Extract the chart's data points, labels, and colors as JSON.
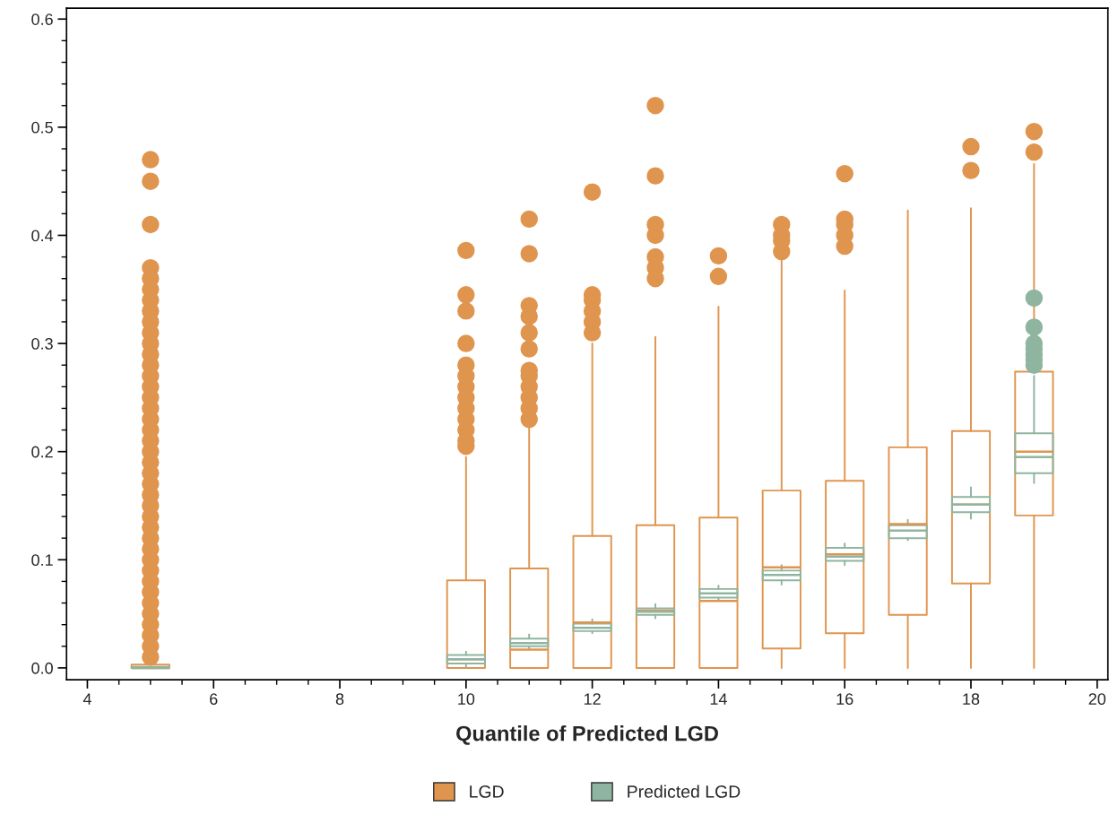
{
  "chart_data": {
    "type": "box",
    "xlabel": "Quantile of Predicted LGD",
    "xlim": [
      3.67,
      20.17
    ],
    "ylim": [
      -0.011,
      0.61
    ],
    "xticks": [
      4,
      {
        "value": 4.5,
        "label": null
      },
      {
        "value": 5,
        "label": null
      },
      {
        "value": 5.5,
        "label": null
      },
      6,
      {
        "value": 6.5,
        "label": null
      },
      {
        "value": 7,
        "label": null
      },
      {
        "value": 7.5,
        "label": null
      },
      8,
      {
        "value": 8.5,
        "label": null
      },
      {
        "value": 9,
        "label": null
      },
      {
        "value": 9.5,
        "label": null
      },
      10,
      {
        "value": 10.5,
        "label": null
      },
      {
        "value": 11,
        "label": null
      },
      {
        "value": 11.5,
        "label": null
      },
      12,
      {
        "value": 12.5,
        "label": null
      },
      {
        "value": 13,
        "label": null
      },
      {
        "value": 13.5,
        "label": null
      },
      14,
      {
        "value": 14.5,
        "label": null
      },
      {
        "value": 15,
        "label": null
      },
      {
        "value": 15.5,
        "label": null
      },
      16,
      {
        "value": 16.5,
        "label": null
      },
      {
        "value": 17,
        "label": null
      },
      {
        "value": 17.5,
        "label": null
      },
      18,
      {
        "value": 18.5,
        "label": null
      },
      {
        "value": 19,
        "label": null
      },
      {
        "value": 19.5,
        "label": null
      },
      20
    ],
    "yticks": [
      {
        "value": 0,
        "label": "0.0"
      },
      {
        "value": 0.02,
        "label": null
      },
      {
        "value": 0.04,
        "label": null
      },
      {
        "value": 0.06,
        "label": null
      },
      {
        "value": 0.08,
        "label": null
      },
      0.1,
      {
        "value": 0.12,
        "label": null
      },
      {
        "value": 0.14,
        "label": null
      },
      {
        "value": 0.16,
        "label": null
      },
      {
        "value": 0.18,
        "label": null
      },
      0.2,
      {
        "value": 0.22,
        "label": null
      },
      {
        "value": 0.24,
        "label": null
      },
      {
        "value": 0.26,
        "label": null
      },
      {
        "value": 0.28,
        "label": null
      },
      0.3,
      {
        "value": 0.32,
        "label": null
      },
      {
        "value": 0.34,
        "label": null
      },
      {
        "value": 0.36,
        "label": null
      },
      {
        "value": 0.38,
        "label": null
      },
      0.4,
      {
        "value": 0.42,
        "label": null
      },
      {
        "value": 0.44,
        "label": null
      },
      {
        "value": 0.46,
        "label": null
      },
      {
        "value": 0.48,
        "label": null
      },
      0.5,
      {
        "value": 0.52,
        "label": null
      },
      {
        "value": 0.54,
        "label": null
      },
      {
        "value": 0.56,
        "label": null
      },
      {
        "value": 0.58,
        "label": null
      },
      0.6
    ],
    "grid": false,
    "legend": "bottom",
    "marker": "circle",
    "series": [
      {
        "name": "LGD",
        "color": "#e0954f",
        "x": [
          5,
          10,
          11,
          12,
          13,
          14,
          15,
          16,
          17,
          18,
          19
        ],
        "boxes": [
          {
            "low": 0,
            "q1": 0,
            "median": 0,
            "q3": 0.003,
            "high": 0.003,
            "outliers": [
              0.01,
              0.02,
              0.03,
              0.04,
              0.05,
              0.06,
              0.07,
              0.08,
              0.09,
              0.1,
              0.11,
              0.12,
              0.13,
              0.14,
              0.15,
              0.16,
              0.17,
              0.18,
              0.19,
              0.2,
              0.21,
              0.22,
              0.23,
              0.24,
              0.25,
              0.26,
              0.27,
              0.28,
              0.29,
              0.3,
              0.31,
              0.32,
              0.33,
              0.34,
              0.35,
              0.36,
              0.37,
              0.41,
              0.45,
              0.47
            ]
          },
          {
            "low": 0,
            "q1": 0,
            "median": 0.008,
            "q3": 0.081,
            "high": 0.195,
            "outliers": [
              0.205,
              0.21,
              0.22,
              0.23,
              0.24,
              0.25,
              0.26,
              0.27,
              0.28,
              0.3,
              0.33,
              0.345,
              0.386
            ]
          },
          {
            "low": 0,
            "q1": 0,
            "median": 0.017,
            "q3": 0.092,
            "high": 0.224,
            "outliers": [
              0.23,
              0.24,
              0.25,
              0.26,
              0.27,
              0.275,
              0.295,
              0.31,
              0.325,
              0.335,
              0.383,
              0.415
            ]
          },
          {
            "low": 0,
            "q1": 0,
            "median": 0.042,
            "q3": 0.122,
            "high": 0.3,
            "outliers": [
              0.31,
              0.32,
              0.33,
              0.34,
              0.345,
              0.44
            ]
          },
          {
            "low": 0,
            "q1": 0,
            "median": 0.053,
            "q3": 0.132,
            "high": 0.306,
            "outliers": [
              0.36,
              0.37,
              0.38,
              0.4,
              0.41,
              0.455,
              0.52
            ]
          },
          {
            "low": 0,
            "q1": 0,
            "median": 0.062,
            "q3": 0.139,
            "high": 0.334,
            "outliers": [
              0.362,
              0.381
            ]
          },
          {
            "low": 0,
            "q1": 0.018,
            "median": 0.093,
            "q3": 0.164,
            "high": 0.38,
            "outliers": [
              0.385,
              0.395,
              0.4,
              0.41
            ]
          },
          {
            "low": 0,
            "q1": 0.032,
            "median": 0.105,
            "q3": 0.173,
            "high": 0.349,
            "outliers": [
              0.39,
              0.4,
              0.41,
              0.415,
              0.457
            ]
          },
          {
            "low": 0,
            "q1": 0.049,
            "median": 0.133,
            "q3": 0.204,
            "high": 0.423
          },
          {
            "low": 0,
            "q1": 0.078,
            "median": 0.151,
            "q3": 0.219,
            "high": 0.425,
            "outliers": [
              0.46,
              0.482
            ]
          },
          {
            "low": 0,
            "q1": 0.141,
            "median": 0.2,
            "q3": 0.274,
            "high": 0.466,
            "outliers": [
              0.477,
              0.496
            ]
          }
        ]
      },
      {
        "name": "Predicted LGD",
        "color": "#8fb5a0",
        "x": [
          5,
          10,
          11,
          12,
          13,
          14,
          15,
          16,
          17,
          18,
          19
        ],
        "boxes": [
          {
            "low": 0,
            "q1": 0,
            "median": 0,
            "q3": 0.001,
            "high": 0.001
          },
          {
            "low": 0.001,
            "q1": 0.004,
            "median": 0.008,
            "q3": 0.012,
            "high": 0.015
          },
          {
            "low": 0.017,
            "q1": 0.02,
            "median": 0.023,
            "q3": 0.027,
            "high": 0.031
          },
          {
            "low": 0.032,
            "q1": 0.034,
            "median": 0.037,
            "q3": 0.041,
            "high": 0.045
          },
          {
            "low": 0.046,
            "q1": 0.049,
            "median": 0.052,
            "q3": 0.055,
            "high": 0.059
          },
          {
            "low": 0.062,
            "q1": 0.065,
            "median": 0.069,
            "q3": 0.073,
            "high": 0.076
          },
          {
            "low": 0.077,
            "q1": 0.081,
            "median": 0.086,
            "q3": 0.09,
            "high": 0.095
          },
          {
            "low": 0.095,
            "q1": 0.099,
            "median": 0.103,
            "q3": 0.111,
            "high": 0.115
          },
          {
            "low": 0.118,
            "q1": 0.12,
            "median": 0.127,
            "q3": 0.132,
            "high": 0.137
          },
          {
            "low": 0.138,
            "q1": 0.144,
            "median": 0.151,
            "q3": 0.158,
            "high": 0.167
          },
          {
            "low": 0.171,
            "q1": 0.18,
            "median": 0.195,
            "q3": 0.217,
            "high": 0.27,
            "outliers": [
              0.28,
              0.285,
              0.29,
              0.295,
              0.3,
              0.315,
              0.342
            ]
          }
        ]
      }
    ]
  }
}
